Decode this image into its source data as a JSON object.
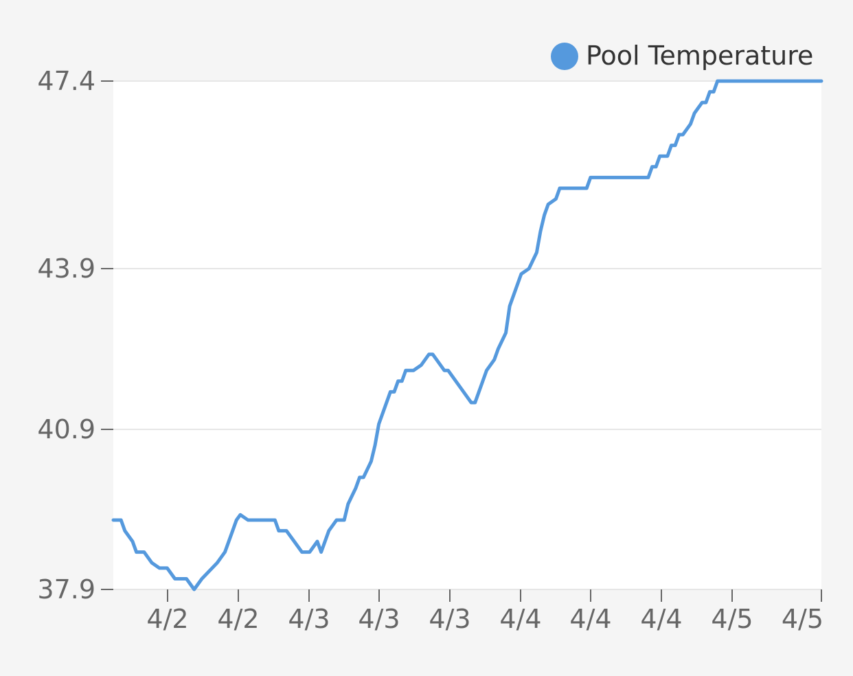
{
  "chart_data": {
    "type": "line",
    "title": "",
    "xlabel": "",
    "ylabel": "",
    "ylim": [
      37.9,
      47.4
    ],
    "yticks": [
      "47.4",
      "43.9",
      "40.9",
      "37.9"
    ],
    "yticks_values": [
      47.4,
      43.9,
      40.9,
      37.9
    ],
    "xticks": [
      "4/2",
      "4/2",
      "4/3",
      "4/3",
      "4/3",
      "4/4",
      "4/4",
      "4/4",
      "4/5",
      "4/5"
    ],
    "grid": true,
    "legend": {
      "placement": "top-right"
    },
    "series": [
      {
        "name": "Pool Temperature",
        "color": "#5599dd",
        "x": [
          0,
          2,
          3,
          5,
          6,
          8,
          10,
          12,
          14,
          16,
          19,
          21,
          23,
          27,
          29,
          31,
          32,
          33,
          35,
          36,
          37,
          38,
          40,
          41,
          42,
          43,
          45,
          47,
          49,
          51,
          53,
          54,
          55,
          56,
          58,
          60,
          61,
          63,
          64,
          65,
          67,
          68,
          69,
          71,
          72,
          73,
          74,
          75,
          76,
          78,
          80,
          82,
          83,
          84,
          86,
          87,
          89,
          90,
          92,
          93,
          94,
          95,
          96,
          97,
          99,
          100,
          102,
          103,
          105,
          106,
          108,
          110,
          111,
          112,
          113,
          115,
          116,
          118,
          120,
          121,
          123,
          124,
          126,
          128,
          129,
          131,
          134,
          136,
          137,
          139,
          140,
          141,
          142,
          144,
          145,
          146,
          147,
          148,
          150,
          151,
          152,
          153,
          154,
          155,
          156,
          157,
          158,
          160,
          161,
          162,
          163,
          164,
          166,
          168,
          170,
          171,
          172,
          173,
          174,
          175,
          176,
          178,
          180,
          181,
          183,
          184
        ],
        "values": [
          39.2,
          39.2,
          39.0,
          38.8,
          38.6,
          38.6,
          38.4,
          38.3,
          38.3,
          38.1,
          38.1,
          37.9,
          38.1,
          38.4,
          38.6,
          39.0,
          39.2,
          39.3,
          39.2,
          39.2,
          39.2,
          39.2,
          39.2,
          39.2,
          39.2,
          39.0,
          39.0,
          38.8,
          38.6,
          38.6,
          38.8,
          38.6,
          38.8,
          39.0,
          39.2,
          39.2,
          39.5,
          39.8,
          40.0,
          40.0,
          40.3,
          40.6,
          41.0,
          41.4,
          41.6,
          41.6,
          41.8,
          41.8,
          42.0,
          42.0,
          42.1,
          42.3,
          42.3,
          42.2,
          42.0,
          42.0,
          41.8,
          41.7,
          41.5,
          41.4,
          41.4,
          41.6,
          41.8,
          42.0,
          42.2,
          42.4,
          42.7,
          43.2,
          43.6,
          43.8,
          43.9,
          44.2,
          44.6,
          44.9,
          45.1,
          45.2,
          45.4,
          45.4,
          45.4,
          45.4,
          45.4,
          45.6,
          45.6,
          45.6,
          45.6,
          45.6,
          45.6,
          45.6,
          45.6,
          45.6,
          45.8,
          45.8,
          46.0,
          46.0,
          46.2,
          46.2,
          46.4,
          46.4,
          46.6,
          46.8,
          46.9,
          47.0,
          47.0,
          47.2,
          47.2,
          47.4,
          47.4,
          47.4,
          47.4,
          47.4,
          47.4,
          47.4,
          47.4,
          47.4,
          47.4,
          47.4,
          47.4,
          47.4,
          47.4,
          47.4,
          47.4,
          47.4,
          47.4,
          47.4,
          47.4,
          47.4
        ]
      }
    ]
  }
}
